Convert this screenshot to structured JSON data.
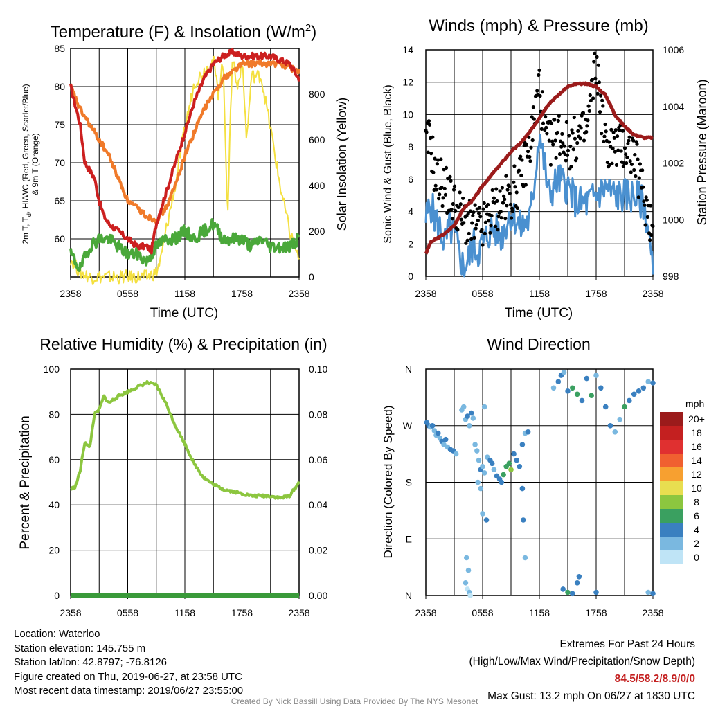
{
  "panels": {
    "temp": {
      "title_a": "Temperature (F) & Insolation (W/m",
      "title_sup": "2",
      "title_b": ")",
      "ylabel_l1": "2m T, T",
      "ylabel_sub": "d",
      "ylabel_l1b": ", HI/WC (Red, Green, Scarlet/Blue)",
      "ylabel_l2": "& 9m T (Orange)",
      "ylabel_right": "Solar Insolation (Yellow)",
      "xlabel": "Time (UTC)"
    },
    "wind": {
      "title": "Winds (mph) & Pressure (mb)",
      "ylabel_left": "Sonic Wind & Gust (Blue, Black)",
      "ylabel_right": "Station Pressure (Maroon)",
      "xlabel": "Time (UTC)"
    },
    "rh": {
      "title": "Relative Humidity (%) & Precipitation (in)",
      "ylabel_left": "Percent & Precipitation"
    },
    "dir": {
      "title": "Wind Direction",
      "ylabel_left": "Direction (Colored By Speed)",
      "legend_title": "mph"
    }
  },
  "chart_data": [
    {
      "type": "line",
      "title": "Temperature (F) & Insolation (W/m2)",
      "xlabel": "Time (UTC)",
      "x_ticks": [
        "2358",
        "0558",
        "1158",
        "1758",
        "2358"
      ],
      "ylim": [
        55,
        85
      ],
      "y_ticks": [
        "60",
        "65",
        "70",
        "75",
        "80",
        "85"
      ],
      "y2lim": [
        0,
        1000
      ],
      "y2_ticks": [
        "0",
        "200",
        "400",
        "600",
        "800"
      ],
      "series": [
        {
          "name": "2m T",
          "color": "#cc1f1f",
          "hours": [
            0,
            1,
            1.5,
            2,
            2.5,
            3,
            3.5,
            4,
            5,
            6,
            7,
            8,
            8.5,
            9,
            10,
            11,
            12,
            13,
            14,
            15,
            16,
            17,
            18,
            19,
            20,
            21,
            22,
            23,
            24
          ],
          "values": [
            80,
            75,
            70,
            69,
            68,
            65,
            63,
            62,
            61,
            60,
            59,
            59,
            58.5,
            62,
            66,
            70,
            74,
            78,
            81,
            83,
            84,
            84.5,
            84,
            84,
            84,
            84,
            83.5,
            83,
            81
          ]
        },
        {
          "name": "9m T",
          "color": "#f07a2a",
          "hours": [
            0,
            1,
            2,
            3,
            4,
            5,
            6,
            7,
            8,
            9,
            10,
            11,
            12,
            13,
            14,
            15,
            16,
            17,
            18,
            19,
            20,
            21,
            22,
            23,
            24
          ],
          "values": [
            80,
            77,
            75,
            73,
            71,
            68,
            65,
            64,
            63,
            62.5,
            64,
            67,
            71,
            74,
            77,
            79,
            81,
            82,
            83,
            83,
            83,
            83,
            83,
            82.5,
            82
          ]
        },
        {
          "name": "Td",
          "color": "#4aa83a",
          "hours": [
            0,
            1,
            2,
            3,
            4,
            5,
            6,
            7,
            8,
            9,
            10,
            11,
            12,
            13,
            14,
            15,
            16,
            17,
            18,
            19,
            20,
            21,
            22,
            23,
            24
          ],
          "values": [
            58,
            56,
            59,
            60,
            60,
            59,
            58,
            58,
            57,
            59,
            60,
            60,
            61,
            60,
            61,
            62,
            60,
            60,
            60,
            59,
            60,
            59,
            59,
            59,
            60
          ]
        },
        {
          "name": "Solar",
          "color": "#f4e040",
          "axis": "right",
          "hours": [
            0,
            1,
            2,
            3,
            4,
            5,
            6,
            7,
            8,
            9,
            9.5,
            10,
            11,
            12,
            13,
            14,
            15,
            15.5,
            16,
            16.5,
            17,
            17.5,
            18,
            18.5,
            19,
            20,
            21,
            22,
            23,
            24
          ],
          "values": [
            80,
            20,
            0,
            0,
            0,
            0,
            0,
            0,
            0,
            20,
            80,
            200,
            400,
            650,
            850,
            900,
            950,
            800,
            950,
            280,
            980,
            820,
            950,
            600,
            880,
            880,
            650,
            400,
            200,
            80
          ]
        }
      ]
    },
    {
      "type": "line",
      "title": "Winds (mph) & Pressure (mb)",
      "xlabel": "Time (UTC)",
      "x_ticks": [
        "2358",
        "0558",
        "1158",
        "1758",
        "2358"
      ],
      "ylim": [
        0,
        14
      ],
      "y_ticks": [
        "0",
        "2",
        "4",
        "6",
        "8",
        "10",
        "12",
        "14"
      ],
      "y2lim": [
        998,
        1006
      ],
      "y2_ticks": [
        "998",
        "1000",
        "1002",
        "1004",
        "1006"
      ],
      "series": [
        {
          "name": "Pressure",
          "color": "#9b1b1b",
          "axis": "right",
          "hours": [
            0,
            0.5,
            1,
            2,
            3,
            4,
            5,
            6,
            7,
            8,
            9,
            10,
            11,
            12,
            13,
            14,
            15,
            16,
            17,
            18,
            19,
            20,
            21,
            22,
            23,
            24
          ],
          "values": [
            998.8,
            999.2,
            999.3,
            999.5,
            999.8,
            1000.4,
            1000.7,
            1001.2,
            1001.6,
            1002.0,
            1002.4,
            1002.7,
            1003.1,
            1003.6,
            1004.1,
            1004.4,
            1004.7,
            1004.8,
            1004.8,
            1004.7,
            1004.4,
            1003.7,
            1003.3,
            1003.0,
            1002.9,
            1002.9
          ]
        },
        {
          "name": "Sonic Wind",
          "color": "#4a90d0",
          "hours": [
            0,
            0.5,
            1,
            1.5,
            2,
            2.5,
            3,
            3.5,
            4,
            4.5,
            5,
            5.5,
            6,
            7,
            8,
            9,
            10,
            11,
            11.5,
            12,
            12.5,
            13,
            14,
            15,
            16,
            17,
            18,
            19,
            20,
            21,
            22,
            23,
            23.5,
            24
          ],
          "values": [
            3.5,
            4.5,
            3.5,
            3,
            2,
            3,
            2.5,
            1.5,
            0.5,
            1,
            2,
            1.5,
            2,
            3,
            2.5,
            4,
            3,
            3.5,
            6,
            9,
            7,
            5,
            6,
            5.5,
            4.5,
            4.5,
            5,
            5.5,
            5,
            5,
            5,
            4.5,
            3,
            0
          ]
        },
        {
          "name": "Gust",
          "color": "#000000",
          "hours": [
            0,
            0.5,
            1,
            1.5,
            2,
            3,
            4,
            5,
            6,
            7,
            8,
            9,
            10,
            11,
            11.5,
            12,
            12.5,
            13,
            14,
            15,
            16,
            17,
            18,
            19,
            20,
            21,
            22,
            23,
            24
          ],
          "values": [
            8,
            8.5,
            6,
            6,
            5.5,
            4.5,
            3.5,
            3,
            3,
            4,
            4.5,
            5,
            6,
            8,
            10,
            12,
            9,
            8,
            9,
            8,
            8.5,
            9,
            13.2,
            8,
            8,
            8,
            7.5,
            5,
            3
          ]
        }
      ]
    },
    {
      "type": "line",
      "title": "Relative Humidity (%) & Precipitation (in)",
      "x_ticks": [
        "2358",
        "0558",
        "1158",
        "1758",
        "2358"
      ],
      "ylim": [
        0,
        100
      ],
      "y_ticks": [
        "0",
        "20",
        "40",
        "60",
        "80",
        "100"
      ],
      "y2lim": [
        0,
        0.1
      ],
      "y2_ticks": [
        "0.00",
        "0.02",
        "0.04",
        "0.06",
        "0.08",
        "0.10"
      ],
      "series": [
        {
          "name": "RH",
          "color": "#8cc63f",
          "hours": [
            0,
            0.5,
            1,
            1.5,
            2,
            2.5,
            3,
            3.5,
            4,
            5,
            6,
            7,
            8,
            9,
            10,
            11,
            12,
            13,
            14,
            15,
            16,
            17,
            18,
            19,
            20,
            21,
            22,
            23,
            24
          ],
          "values": [
            47,
            48,
            55,
            68,
            65,
            80,
            82,
            88,
            85,
            88,
            90,
            92,
            94,
            93,
            85,
            75,
            67,
            58,
            52,
            49,
            47,
            46,
            45,
            44,
            44,
            44,
            43,
            44,
            50
          ]
        },
        {
          "name": "Precipitation",
          "color": "#3a9a3a",
          "axis": "right",
          "hours": [
            0,
            24
          ],
          "values": [
            0,
            0
          ]
        }
      ]
    },
    {
      "type": "scatter",
      "title": "Wind Direction",
      "x_ticks": [
        "2358",
        "0558",
        "1158",
        "1758",
        "2358"
      ],
      "y_ticks": [
        "N",
        "E",
        "S",
        "W",
        "N"
      ],
      "legend": {
        "title": "mph",
        "labels": [
          "20+",
          "18",
          "16",
          "14",
          "12",
          "10",
          "8",
          "6",
          "4",
          "2",
          "0"
        ],
        "colors": [
          "#9b1b1b",
          "#c42020",
          "#e03030",
          "#f06030",
          "#f7a030",
          "#e8de50",
          "#8cc63f",
          "#3aa060",
          "#3a80c0",
          "#7ab8e0",
          "#bfe4f6"
        ]
      },
      "points": [
        [
          0.1,
          275,
          3
        ],
        [
          0.3,
          270,
          3
        ],
        [
          0.5,
          268,
          2
        ],
        [
          0.7,
          270,
          3
        ],
        [
          0.9,
          262,
          2
        ],
        [
          1.1,
          255,
          2
        ],
        [
          1.3,
          258,
          3
        ],
        [
          1.5,
          250,
          2
        ],
        [
          1.7,
          245,
          3
        ],
        [
          1.9,
          240,
          2
        ],
        [
          2.1,
          248,
          3
        ],
        [
          2.3,
          236,
          2
        ],
        [
          2.6,
          232,
          3
        ],
        [
          2.9,
          230,
          3
        ],
        [
          3.2,
          225,
          2
        ],
        [
          3.8,
          295,
          2
        ],
        [
          4.0,
          300,
          1
        ],
        [
          4.2,
          280,
          2
        ],
        [
          4.4,
          285,
          3
        ],
        [
          4.6,
          270,
          2
        ],
        [
          4.8,
          290,
          3
        ],
        [
          5.0,
          282,
          2
        ],
        [
          4.3,
          60,
          1
        ],
        [
          4.5,
          40,
          2
        ],
        [
          4.2,
          20,
          1
        ],
        [
          4.4,
          10,
          0
        ],
        [
          4.6,
          5,
          1
        ],
        [
          4.7,
          0,
          0
        ],
        [
          5.2,
          240,
          2
        ],
        [
          5.4,
          230,
          1
        ],
        [
          5.6,
          215,
          2
        ],
        [
          5.8,
          200,
          3
        ],
        [
          6.0,
          205,
          1
        ],
        [
          6.2,
          195,
          2
        ],
        [
          6.5,
          220,
          2
        ],
        [
          6.8,
          215,
          3
        ],
        [
          7.0,
          210,
          3
        ],
        [
          7.2,
          200,
          2
        ],
        [
          7.5,
          190,
          3
        ],
        [
          7.8,
          185,
          3
        ],
        [
          8.0,
          180,
          4
        ],
        [
          8.2,
          192,
          5
        ],
        [
          8.5,
          205,
          6
        ],
        [
          8.8,
          210,
          5
        ],
        [
          9.0,
          200,
          7
        ],
        [
          6.2,
          300,
          1
        ],
        [
          6.0,
          130,
          2
        ],
        [
          6.4,
          120,
          3
        ],
        [
          5.5,
          180,
          1
        ],
        [
          5.8,
          170,
          2
        ],
        [
          9.3,
          225,
          3
        ],
        [
          9.6,
          215,
          4
        ],
        [
          9.9,
          205,
          3
        ],
        [
          10.2,
          240,
          3
        ],
        [
          10.5,
          258,
          2
        ],
        [
          10.8,
          260,
          4
        ],
        [
          10.2,
          170,
          3
        ],
        [
          10.5,
          60,
          1
        ],
        [
          10.3,
          120,
          3
        ],
        [
          13.5,
          330,
          2
        ],
        [
          14.0,
          340,
          3
        ],
        [
          14.3,
          350,
          3
        ],
        [
          14.6,
          355,
          2
        ],
        [
          15.0,
          325,
          3
        ],
        [
          15.5,
          330,
          6
        ],
        [
          16.0,
          320,
          6
        ],
        [
          16.5,
          310,
          3
        ],
        [
          17.0,
          345,
          3
        ],
        [
          17.5,
          318,
          6
        ],
        [
          18.0,
          350,
          2
        ],
        [
          18.5,
          330,
          4
        ],
        [
          19.0,
          300,
          3
        ],
        [
          19.5,
          270,
          3
        ],
        [
          20.0,
          260,
          2
        ],
        [
          20.5,
          280,
          2
        ],
        [
          21.0,
          300,
          6
        ],
        [
          21.5,
          310,
          3
        ],
        [
          22.0,
          320,
          4
        ],
        [
          22.5,
          325,
          3
        ],
        [
          23.0,
          330,
          3
        ],
        [
          23.5,
          340,
          2
        ],
        [
          24.0,
          338,
          3
        ],
        [
          14.5,
          10,
          3
        ],
        [
          15.0,
          5,
          6
        ],
        [
          15.5,
          3,
          3
        ],
        [
          16.2,
          30,
          3
        ],
        [
          16.0,
          20,
          4
        ],
        [
          18.0,
          5,
          3
        ],
        [
          23.5,
          5,
          2
        ],
        [
          24.0,
          3,
          3
        ]
      ]
    }
  ],
  "footer_left": [
    "Location: Waterloo",
    "Station elevation: 145.755 m",
    "Station lat/lon: 42.8797; -76.8126",
    "Figure created on Thu, 2019-06-27, at 23:58 UTC",
    "Most recent data timestamp: 2019/06/27 23:55:00"
  ],
  "footer_right": {
    "line1": "Extremes For Past 24 Hours",
    "line2": "(High/Low/Max Wind/Precipitation/Snow Depth)",
    "extremes": "84.5/58.2/8.9/0/0",
    "extremes_color": "#c42020",
    "gust": "Max Gust: 13.2 mph On 06/27 at 1830 UTC"
  },
  "credit": "Created By Nick Bassill Using Data Provided By The NYS Mesonet"
}
